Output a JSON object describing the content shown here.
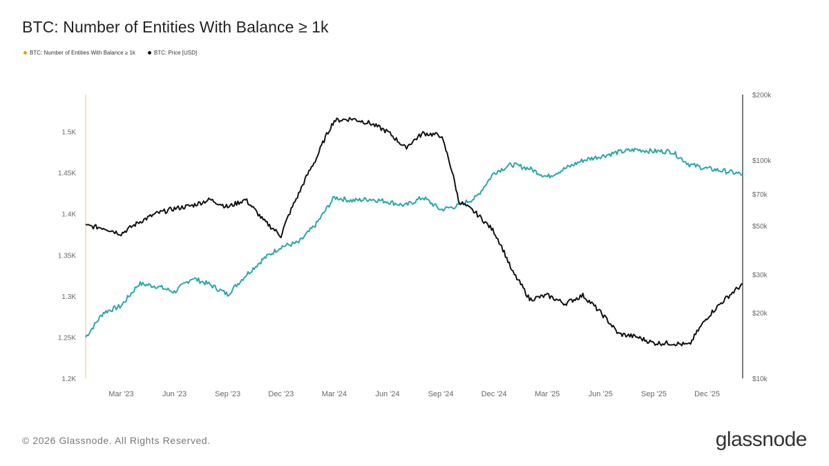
{
  "title": "BTC: Number of Entities With Balance ≥ 1k",
  "legend": [
    {
      "label": "BTC: Number of Entities With Balance ≥ 1k",
      "color": "#f7931a"
    },
    {
      "label": "BTC: Price [USD]",
      "color": "#111111"
    }
  ],
  "footer": "© 2026 Glassnode. All Rights Reserved.",
  "brand": "glassnode",
  "chart_data": {
    "type": "line",
    "x_ticks": [
      "Mar '23",
      "Jun '23",
      "Sep '23",
      "Dec '23",
      "Mar '24",
      "Jun '24",
      "Sep '24",
      "Dec '24",
      "Mar '25",
      "Jun '25",
      "Sep '25",
      "Dec '25"
    ],
    "x_range": [
      "2023-01",
      "2026-02"
    ],
    "left_axis": {
      "ticks": [
        "1.2K",
        "1.25K",
        "1.3K",
        "1.35K",
        "1.4K",
        "1.45K",
        "1.5K"
      ],
      "ylim": [
        1200,
        1545
      ]
    },
    "right_axis": {
      "scale": "log",
      "ticks": [
        "$10k",
        "$20k",
        "$30k",
        "$50k",
        "$70k",
        "$100k",
        "$200k"
      ],
      "ylim": [
        10000,
        200000
      ]
    },
    "series": [
      {
        "name": "BTC: Number of Entities With Balance ≥ 1k",
        "color": "#2aa6a6",
        "axis": "left",
        "x": [
          "2023-01",
          "2023-02",
          "2023-03",
          "2023-04",
          "2023-05",
          "2023-06",
          "2023-07",
          "2023-08",
          "2023-09",
          "2023-10",
          "2023-11",
          "2023-12",
          "2024-01",
          "2024-02",
          "2024-03",
          "2024-04",
          "2024-05",
          "2024-06",
          "2024-07",
          "2024-08",
          "2024-09",
          "2024-10",
          "2024-11",
          "2024-12",
          "2025-01",
          "2025-02",
          "2025-03",
          "2025-04",
          "2025-05",
          "2025-06",
          "2025-07",
          "2025-08",
          "2025-09",
          "2025-10",
          "2025-11",
          "2025-12",
          "2026-01",
          "2026-02"
        ],
        "values": [
          1250,
          1280,
          1288,
          1315,
          1312,
          1305,
          1322,
          1314,
          1302,
          1325,
          1345,
          1360,
          1365,
          1388,
          1420,
          1416,
          1418,
          1415,
          1410,
          1420,
          1405,
          1410,
          1420,
          1450,
          1460,
          1455,
          1445,
          1455,
          1465,
          1470,
          1475,
          1478,
          1476,
          1476,
          1460,
          1455,
          1452,
          1448
        ]
      },
      {
        "name": "BTC: Price [USD]",
        "color": "#111111",
        "axis": "right",
        "x": [
          "2023-01",
          "2023-02",
          "2023-03",
          "2023-04",
          "2023-05",
          "2023-06",
          "2023-07",
          "2023-08",
          "2023-09",
          "2023-10",
          "2023-11",
          "2023-12",
          "2024-01",
          "2024-02",
          "2024-03",
          "2024-04",
          "2024-05",
          "2024-06",
          "2024-07",
          "2024-08",
          "2024-09",
          "2024-10",
          "2024-11",
          "2024-12",
          "2025-01",
          "2025-02",
          "2025-03",
          "2025-04",
          "2025-05",
          "2025-06",
          "2025-07",
          "2025-08",
          "2025-09",
          "2025-10",
          "2025-11",
          "2025-12",
          "2026-01",
          "2026-02"
        ],
        "values": [
          50000,
          49000,
          46000,
          52000,
          57000,
          60000,
          62000,
          66000,
          61000,
          66000,
          53000,
          45000,
          70000,
          102000,
          152000,
          155000,
          148000,
          135000,
          114000,
          133000,
          130000,
          65000,
          57000,
          47000,
          31000,
          23000,
          24000,
          22000,
          24000,
          20000,
          16000,
          15500,
          14500,
          14500,
          14200,
          19000,
          23000,
          27000
        ]
      }
    ]
  }
}
